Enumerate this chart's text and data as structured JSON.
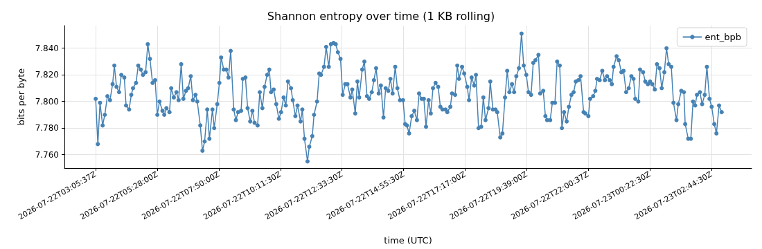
{
  "chart_data": {
    "type": "line",
    "title": "Shannon entropy over time (1 KB rolling)",
    "xlabel": "time (UTC)",
    "ylabel": "bits per byte",
    "xlim": [
      "2026-07-22T01:54",
      "2026-07-23T04:17"
    ],
    "xticks": [
      {
        "value": "2026-07-22T03:05:37",
        "label": "2026-07-22T03:05:37Z"
      },
      {
        "value": "2026-07-22T05:28",
        "label": "2026-07-22T05:28:00Z"
      },
      {
        "value": "2026-07-22T07:50",
        "label": "2026-07-22T07:50:00Z"
      },
      {
        "value": "2026-07-22T10:11:30",
        "label": "2026-07-22T10:11:30Z"
      },
      {
        "value": "2026-07-22T12:33:30",
        "label": "2026-07-22T12:33:30Z"
      },
      {
        "value": "2026-07-22T14:55:30",
        "label": "2026-07-22T14:55:30Z"
      },
      {
        "value": "2026-07-22T17:17",
        "label": "2026-07-22T17:17:00Z"
      },
      {
        "value": "2026-07-22T19:39",
        "label": "2026-07-22T19:39:00Z"
      },
      {
        "value": "2026-07-22T22:00:37",
        "label": "2026-07-22T22:00:37Z"
      },
      {
        "value": "2026-07-23T00:22:30",
        "label": "2026-07-23T00:22:30Z"
      },
      {
        "value": "2026-07-23T02:44:30",
        "label": "2026-07-23T02:44:30Z"
      }
    ],
    "ylim": [
      7.75,
      7.857
    ],
    "yticks": [
      {
        "value": 7.76,
        "label": "7.760"
      },
      {
        "value": 7.78,
        "label": "7.780"
      },
      {
        "value": 7.8,
        "label": "7.800"
      },
      {
        "value": 7.82,
        "label": "7.820"
      },
      {
        "value": 7.84,
        "label": "7.840"
      }
    ],
    "grid": true,
    "legend": "top right",
    "marker": "circle",
    "line_style": "solid",
    "series": [
      {
        "name": "ent_bpb",
        "color": "#4682b4",
        "x": [
          "2026-07-22T03:06",
          "2026-07-22T03:11",
          "2026-07-22T03:16",
          "2026-07-22T03:22",
          "2026-07-22T03:27",
          "2026-07-22T03:33",
          "2026-07-22T03:39",
          "2026-07-22T03:45",
          "2026-07-22T03:49",
          "2026-07-22T03:54",
          "2026-07-22T04:00",
          "2026-07-22T04:05",
          "2026-07-22T04:12",
          "2026-07-22T04:16",
          "2026-07-22T04:23",
          "2026-07-22T04:28",
          "2026-07-22T04:32",
          "2026-07-22T04:39",
          "2026-07-22T04:44",
          "2026-07-22T04:50",
          "2026-07-22T04:55",
          "2026-07-22T05:01",
          "2026-07-22T05:06",
          "2026-07-22T05:11",
          "2026-07-22T05:17",
          "2026-07-22T05:23",
          "2026-07-22T05:28",
          "2026-07-22T05:33",
          "2026-07-22T05:40",
          "2026-07-22T05:44",
          "2026-07-22T05:49",
          "2026-07-22T05:56",
          "2026-07-22T06:00",
          "2026-07-22T06:06",
          "2026-07-22T06:12",
          "2026-07-22T06:17",
          "2026-07-22T06:23",
          "2026-07-22T06:28",
          "2026-07-22T06:34",
          "2026-07-22T06:39",
          "2026-07-22T06:45",
          "2026-07-22T06:50",
          "2026-07-22T06:56",
          "2026-07-22T07:00",
          "2026-07-22T07:07",
          "2026-07-22T07:12",
          "2026-07-22T07:17",
          "2026-07-22T07:23",
          "2026-07-22T07:28",
          "2026-07-22T07:35",
          "2026-07-22T07:39",
          "2026-07-22T07:46",
          "2026-07-22T07:51",
          "2026-07-22T07:55",
          "2026-07-22T08:01",
          "2026-07-22T08:07",
          "2026-07-22T08:12",
          "2026-07-22T08:17",
          "2026-07-22T08:24",
          "2026-07-22T08:29",
          "2026-07-22T08:34",
          "2026-07-22T08:41",
          "2026-07-22T08:45",
          "2026-07-22T08:51",
          "2026-07-22T08:56",
          "2026-07-22T09:02",
          "2026-07-22T09:07",
          "2026-07-22T09:12",
          "2026-07-22T09:19",
          "2026-07-22T09:24",
          "2026-07-22T09:30",
          "2026-07-22T09:35",
          "2026-07-22T09:41",
          "2026-07-22T09:46",
          "2026-07-22T09:50",
          "2026-07-22T09:56",
          "2026-07-22T10:02",
          "2026-07-22T10:08",
          "2026-07-22T10:13",
          "2026-07-22T10:19",
          "2026-07-22T10:24",
          "2026-07-22T10:29",
          "2026-07-22T10:36",
          "2026-07-22T10:40",
          "2026-07-22T10:46",
          "2026-07-22T10:51",
          "2026-07-22T10:58",
          "2026-07-22T11:02",
          "2026-07-22T11:07",
          "2026-07-22T11:14",
          "2026-07-22T11:18",
          "2026-07-22T11:25",
          "2026-07-22T11:29",
          "2026-07-22T11:36",
          "2026-07-22T11:41",
          "2026-07-22T11:45",
          "2026-07-22T11:52",
          "2026-07-22T11:57",
          "2026-07-22T12:03",
          "2026-07-22T12:08",
          "2026-07-22T12:14",
          "2026-07-22T12:19",
          "2026-07-22T12:24",
          "2026-07-22T12:30",
          "2026-07-22T12:35",
          "2026-07-22T12:41",
          "2026-07-22T12:46",
          "2026-07-22T12:53",
          "2026-07-22T12:57",
          "2026-07-22T13:04",
          "2026-07-22T13:09",
          "2026-07-22T13:13",
          "2026-07-22T13:20",
          "2026-07-22T13:25",
          "2026-07-22T13:31",
          "2026-07-22T13:36",
          "2026-07-22T13:42",
          "2026-07-22T13:47",
          "2026-07-22T13:52",
          "2026-07-22T13:58",
          "2026-07-22T14:03",
          "2026-07-22T14:09",
          "2026-07-22T14:14",
          "2026-07-22T14:20",
          "2026-07-22T14:25",
          "2026-07-22T14:30",
          "2026-07-22T14:36",
          "2026-07-22T14:41",
          "2026-07-22T14:47",
          "2026-07-22T14:54",
          "2026-07-22T14:59",
          "2026-07-22T15:03",
          "2026-07-22T15:08",
          "2026-07-22T15:14",
          "2026-07-22T15:20",
          "2026-07-22T15:26",
          "2026-07-22T15:31",
          "2026-07-22T15:37",
          "2026-07-22T15:42",
          "2026-07-22T15:47",
          "2026-07-22T15:53",
          "2026-07-22T15:58",
          "2026-07-22T16:03",
          "2026-07-22T16:09",
          "2026-07-22T16:15",
          "2026-07-22T16:20",
          "2026-07-22T16:25",
          "2026-07-22T16:32",
          "2026-07-22T16:36",
          "2026-07-22T16:43",
          "2026-07-22T16:47",
          "2026-07-22T16:54",
          "2026-07-22T16:59",
          "2026-07-22T17:03",
          "2026-07-22T17:10",
          "2026-07-22T17:15",
          "2026-07-22T17:22",
          "2026-07-22T17:26",
          "2026-07-22T17:32",
          "2026-07-22T17:38",
          "2026-07-22T17:42",
          "2026-07-22T17:48",
          "2026-07-22T17:54",
          "2026-07-22T17:59",
          "2026-07-22T18:04",
          "2026-07-22T18:11",
          "2026-07-22T18:15",
          "2026-07-22T18:21",
          "2026-07-22T18:27",
          "2026-07-22T18:31",
          "2026-07-22T18:38",
          "2026-07-22T18:43",
          "2026-07-22T18:49",
          "2026-07-22T18:54",
          "2026-07-22T18:59",
          "2026-07-22T19:05",
          "2026-07-22T19:10",
          "2026-07-22T19:15",
          "2026-07-22T19:21",
          "2026-07-22T19:27",
          "2026-07-22T19:32",
          "2026-07-22T19:38",
          "2026-07-22T19:43",
          "2026-07-22T19:49",
          "2026-07-22T19:54",
          "2026-07-22T19:59",
          "2026-07-22T20:06",
          "2026-07-22T20:10",
          "2026-07-22T20:17",
          "2026-07-22T20:22",
          "2026-07-22T20:26",
          "2026-07-22T20:33",
          "2026-07-22T20:38",
          "2026-07-22T20:44",
          "2026-07-22T20:49",
          "2026-07-22T20:55",
          "2026-07-22T21:00",
          "2026-07-22T21:05",
          "2026-07-22T21:11",
          "2026-07-22T21:16",
          "2026-07-22T21:22",
          "2026-07-22T21:27",
          "2026-07-22T21:32",
          "2026-07-22T21:38",
          "2026-07-22T21:43",
          "2026-07-22T21:50",
          "2026-07-22T21:54",
          "2026-07-22T22:01",
          "2026-07-22T22:05",
          "2026-07-22T22:12",
          "2026-07-22T22:17",
          "2026-07-22T22:21",
          "2026-07-22T22:27",
          "2026-07-22T22:33",
          "2026-07-22T22:39",
          "2026-07-22T22:44",
          "2026-07-22T22:50",
          "2026-07-22T22:55",
          "2026-07-22T22:59",
          "2026-07-22T23:06",
          "2026-07-22T23:11",
          "2026-07-22T23:17",
          "2026-07-22T23:22",
          "2026-07-22T23:28",
          "2026-07-22T23:34",
          "2026-07-22T23:40",
          "2026-07-22T23:45",
          "2026-07-22T23:49",
          "2026-07-22T23:56",
          "2026-07-23T00:00",
          "2026-07-23T00:07",
          "2026-07-23T00:12",
          "2026-07-23T00:18",
          "2026-07-23T00:23",
          "2026-07-23T00:28",
          "2026-07-23T00:34",
          "2026-07-23T00:39",
          "2026-07-23T00:45",
          "2026-07-23T00:50",
          "2026-07-23T00:56",
          "2026-07-23T01:01",
          "2026-07-23T01:06",
          "2026-07-23T01:12",
          "2026-07-23T01:17",
          "2026-07-23T01:24",
          "2026-07-23T01:28",
          "2026-07-23T01:35",
          "2026-07-23T01:41",
          "2026-07-23T01:44",
          "2026-07-23T01:51",
          "2026-07-23T01:57",
          "2026-07-23T02:02",
          "2026-07-23T02:07",
          "2026-07-23T02:11",
          "2026-07-23T02:18",
          "2026-07-23T02:23",
          "2026-07-23T02:29",
          "2026-07-23T02:34",
          "2026-07-23T02:40",
          "2026-07-23T02:45",
          "2026-07-23T02:51",
          "2026-07-23T02:56",
          "2026-07-23T03:02",
          "2026-07-23T03:08"
        ],
        "values": [
          7.802,
          7.768,
          7.799,
          7.782,
          7.79,
          7.804,
          7.801,
          7.813,
          7.827,
          7.811,
          7.807,
          7.82,
          7.818,
          7.797,
          7.794,
          7.805,
          7.81,
          7.814,
          7.827,
          7.824,
          7.82,
          7.822,
          7.843,
          7.832,
          7.814,
          7.816,
          7.79,
          7.8,
          7.793,
          7.79,
          7.795,
          7.792,
          7.81,
          7.803,
          7.807,
          7.801,
          7.828,
          7.802,
          7.808,
          7.81,
          7.819,
          7.801,
          7.805,
          7.8,
          7.782,
          7.763,
          7.77,
          7.794,
          7.772,
          7.794,
          7.78,
          7.798,
          7.814,
          7.833,
          7.824,
          7.824,
          7.818,
          7.838,
          7.794,
          7.786,
          7.792,
          7.793,
          7.817,
          7.818,
          7.795,
          7.785,
          7.793,
          7.784,
          7.782,
          7.807,
          7.795,
          7.811,
          7.82,
          7.824,
          7.807,
          7.809,
          7.798,
          7.787,
          7.792,
          7.803,
          7.797,
          7.815,
          7.81,
          7.801,
          7.789,
          7.797,
          7.785,
          7.794,
          7.772,
          7.755,
          7.766,
          7.774,
          7.79,
          7.8,
          7.821,
          7.82,
          7.826,
          7.841,
          7.826,
          7.843,
          7.844,
          7.843,
          7.837,
          7.832,
          7.805,
          7.813,
          7.813,
          7.803,
          7.809,
          7.791,
          7.815,
          7.803,
          7.824,
          7.83,
          7.804,
          7.802,
          7.807,
          7.816,
          7.825,
          7.806,
          7.812,
          7.788,
          7.81,
          7.808,
          7.817,
          7.806,
          7.826,
          7.81,
          7.801,
          7.801,
          7.783,
          7.782,
          7.776,
          7.789,
          7.793,
          7.786,
          7.806,
          7.802,
          7.802,
          7.781,
          7.801,
          7.791,
          7.81,
          7.814,
          7.811,
          7.796,
          7.794,
          7.794,
          7.792,
          7.796,
          7.806,
          7.805,
          7.827,
          7.817,
          7.826,
          7.821,
          7.811,
          7.801,
          7.818,
          7.812,
          7.82,
          7.78,
          7.781,
          7.803,
          7.786,
          7.795,
          7.815,
          7.794,
          7.794,
          7.792,
          7.773,
          7.776,
          7.803,
          7.823,
          7.807,
          7.813,
          7.807,
          7.819,
          7.825,
          7.851,
          7.827,
          7.82,
          7.807,
          7.805,
          7.829,
          7.831,
          7.835,
          7.806,
          7.808,
          7.789,
          7.786,
          7.786,
          7.799,
          7.799,
          7.83,
          7.827,
          7.78,
          7.792,
          7.785,
          7.796,
          7.805,
          7.807,
          7.815,
          7.816,
          7.819,
          7.792,
          7.791,
          7.789,
          7.802,
          7.804,
          7.808,
          7.817,
          7.816,
          7.823,
          7.816,
          7.819,
          7.816,
          7.813,
          7.826,
          7.834,
          7.831,
          7.822,
          7.823,
          7.807,
          7.81,
          7.819,
          7.817,
          7.802,
          7.8,
          7.824,
          7.822,
          7.815,
          7.813,
          7.815,
          7.813,
          7.809,
          7.828,
          7.825,
          7.81,
          7.822,
          7.84,
          7.828,
          7.826,
          7.799,
          7.786,
          7.798,
          7.808,
          7.807,
          7.783,
          7.772,
          7.772,
          7.8,
          7.797,
          7.805,
          7.807,
          7.798,
          7.805,
          7.826,
          7.802,
          7.796,
          7.783,
          7.776,
          7.797,
          7.792
        ]
      }
    ]
  }
}
